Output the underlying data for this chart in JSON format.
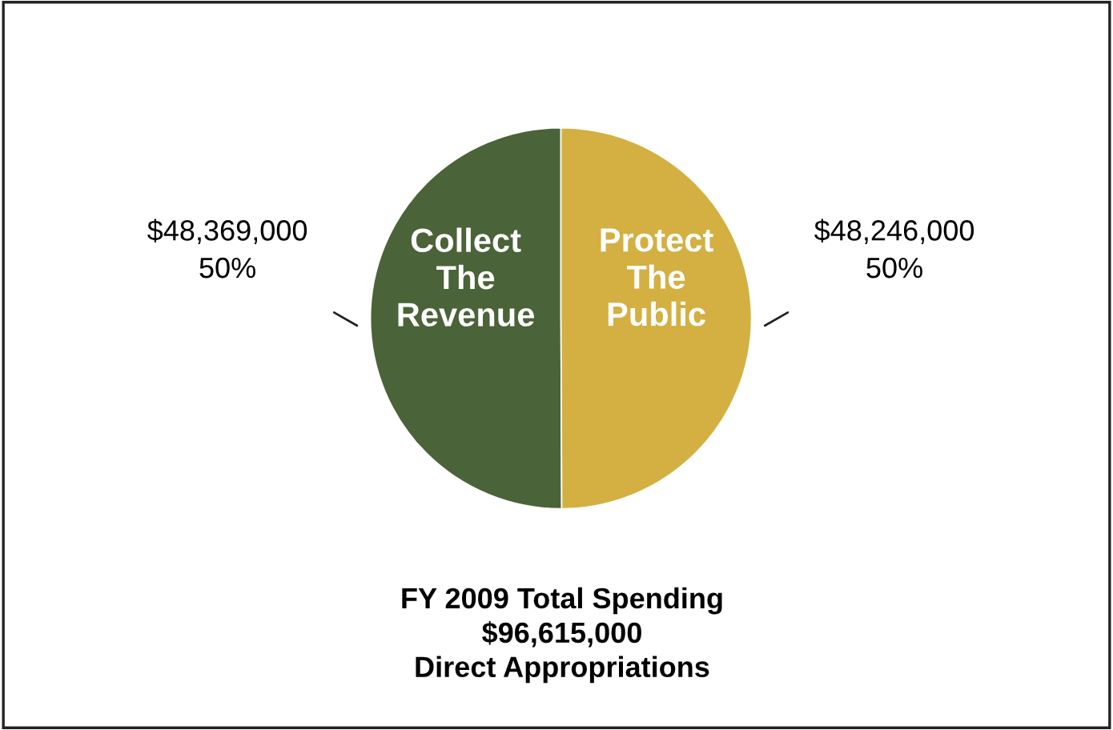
{
  "chart_data": {
    "type": "pie",
    "title": "FY 2009 Total Spending\n$96,615,000\nDirect Appropriations",
    "categories": [
      "Collect\nThe\nRevenue",
      "Protect\nThe\nPublic"
    ],
    "values": [
      48369000,
      48246000
    ],
    "colors": [
      "#4a6338",
      "#d4b042"
    ],
    "value_labels": [
      "$48,369,000\n50%",
      "$48,246,000\n50%"
    ]
  }
}
